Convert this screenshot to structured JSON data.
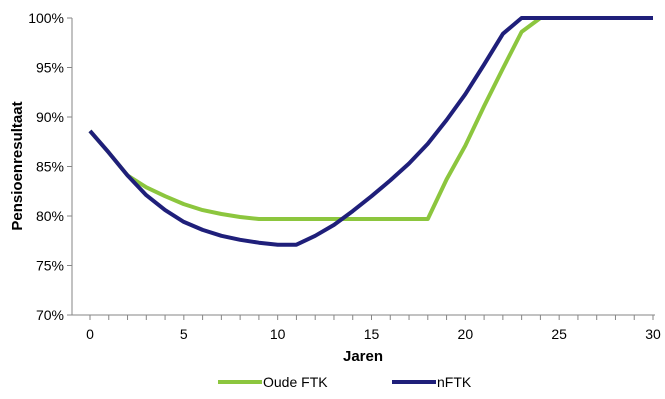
{
  "chart_data": {
    "type": "line",
    "xlabel": "Jaren",
    "ylabel": "Pensioenresultaat",
    "xlim": [
      0,
      30
    ],
    "ylim": [
      70,
      100
    ],
    "x_ticks": [
      "0",
      "5",
      "10",
      "15",
      "20",
      "25",
      "30"
    ],
    "y_ticks": [
      "70%",
      "75%",
      "80%",
      "85%",
      "90%",
      "95%",
      "100%"
    ],
    "grid": false,
    "legend_position": "bottom",
    "series": [
      {
        "name": "Oude FTK",
        "color": "#8cc63e",
        "points": [
          [
            0,
            88.6
          ],
          [
            1,
            86.4
          ],
          [
            2,
            84.1
          ],
          [
            3,
            82.9
          ],
          [
            4,
            82.0
          ],
          [
            5,
            81.2
          ],
          [
            6,
            80.6
          ],
          [
            7,
            80.2
          ],
          [
            8,
            79.9
          ],
          [
            9,
            79.7
          ],
          [
            10,
            79.7
          ],
          [
            11,
            79.7
          ],
          [
            12,
            79.7
          ],
          [
            13,
            79.7
          ],
          [
            14,
            79.7
          ],
          [
            15,
            79.7
          ],
          [
            16,
            79.7
          ],
          [
            17,
            79.7
          ],
          [
            18,
            79.7
          ],
          [
            19,
            83.7
          ],
          [
            20,
            87.1
          ],
          [
            21,
            91.1
          ],
          [
            22,
            94.9
          ],
          [
            23,
            98.6
          ],
          [
            24,
            100
          ],
          [
            25,
            100
          ],
          [
            26,
            100
          ],
          [
            27,
            100
          ],
          [
            28,
            100
          ],
          [
            29,
            100
          ],
          [
            30,
            100
          ]
        ]
      },
      {
        "name": "nFTK",
        "color": "#1f1f7a",
        "points": [
          [
            0,
            88.6
          ],
          [
            1,
            86.4
          ],
          [
            2,
            84.1
          ],
          [
            3,
            82.1
          ],
          [
            4,
            80.6
          ],
          [
            5,
            79.4
          ],
          [
            6,
            78.6
          ],
          [
            7,
            78.0
          ],
          [
            8,
            77.6
          ],
          [
            9,
            77.3
          ],
          [
            10,
            77.1
          ],
          [
            11,
            77.1
          ],
          [
            12,
            78.0
          ],
          [
            13,
            79.1
          ],
          [
            14,
            80.5
          ],
          [
            15,
            82.0
          ],
          [
            16,
            83.6
          ],
          [
            17,
            85.3
          ],
          [
            18,
            87.3
          ],
          [
            19,
            89.7
          ],
          [
            20,
            92.3
          ],
          [
            21,
            95.3
          ],
          [
            22,
            98.4
          ],
          [
            23,
            100
          ],
          [
            24,
            100
          ],
          [
            25,
            100
          ],
          [
            26,
            100
          ],
          [
            27,
            100
          ],
          [
            28,
            100
          ],
          [
            29,
            100
          ],
          [
            30,
            100
          ]
        ]
      }
    ]
  }
}
